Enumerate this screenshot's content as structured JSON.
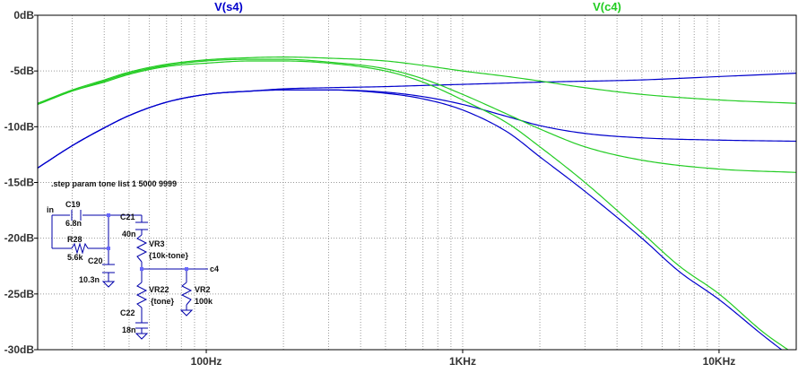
{
  "chart_data": {
    "type": "line",
    "x_scale": "log",
    "xlim_hz": [
      22,
      20000
    ],
    "ylim_db": [
      -30,
      0
    ],
    "grid": true,
    "ticks": {
      "y": [
        {
          "value": 0,
          "label": "0dB"
        },
        {
          "value": -5,
          "label": "-5dB"
        },
        {
          "value": -10,
          "label": "-10dB"
        },
        {
          "value": -15,
          "label": "-15dB"
        },
        {
          "value": -20,
          "label": "-20dB"
        },
        {
          "value": -25,
          "label": "-25dB"
        },
        {
          "value": -30,
          "label": "-30dB"
        }
      ],
      "x": [
        {
          "value": 100,
          "label": "100Hz"
        },
        {
          "value": 1000,
          "label": "1KHz"
        },
        {
          "value": 10000,
          "label": "10KHz"
        }
      ]
    },
    "legend": [
      {
        "label": "V(s4)",
        "color": "#0000cc"
      },
      {
        "label": "V(c4)",
        "color": "#22cc22"
      }
    ],
    "annotation": ".step param tone list 1 5000 9999",
    "series": [
      {
        "trace": "V(s4)",
        "step": 1,
        "color": "#0000cc",
        "points": [
          [
            22,
            -13.7
          ],
          [
            30,
            -11.7
          ],
          [
            40,
            -10.1
          ],
          [
            50,
            -9.0
          ],
          [
            70,
            -7.8
          ],
          [
            100,
            -7.1
          ],
          [
            150,
            -6.8
          ],
          [
            200,
            -6.7
          ],
          [
            300,
            -6.7
          ],
          [
            500,
            -7.0
          ],
          [
            700,
            -7.5
          ],
          [
            1000,
            -8.5
          ],
          [
            1500,
            -10.5
          ],
          [
            2000,
            -12.7
          ],
          [
            3000,
            -15.8
          ],
          [
            5000,
            -20.0
          ],
          [
            7000,
            -23.0
          ],
          [
            10000,
            -25.5
          ],
          [
            15000,
            -28.8
          ],
          [
            20000,
            -31.0
          ]
        ]
      },
      {
        "trace": "V(s4)",
        "step": 5000,
        "color": "#0000cc",
        "points": [
          [
            22,
            -13.7
          ],
          [
            30,
            -11.7
          ],
          [
            40,
            -10.1
          ],
          [
            50,
            -9.0
          ],
          [
            70,
            -7.8
          ],
          [
            100,
            -7.1
          ],
          [
            150,
            -6.8
          ],
          [
            200,
            -6.7
          ],
          [
            300,
            -6.7
          ],
          [
            500,
            -6.9
          ],
          [
            700,
            -7.3
          ],
          [
            1000,
            -8.0
          ],
          [
            1500,
            -9.1
          ],
          [
            2000,
            -9.9
          ],
          [
            3000,
            -10.6
          ],
          [
            5000,
            -11.0
          ],
          [
            10000,
            -11.2
          ],
          [
            20000,
            -11.3
          ]
        ]
      },
      {
        "trace": "V(s4)",
        "step": 9999,
        "color": "#0000cc",
        "points": [
          [
            22,
            -13.7
          ],
          [
            30,
            -11.7
          ],
          [
            40,
            -10.1
          ],
          [
            50,
            -9.0
          ],
          [
            70,
            -7.8
          ],
          [
            100,
            -7.1
          ],
          [
            150,
            -6.8
          ],
          [
            200,
            -6.6
          ],
          [
            300,
            -6.5
          ],
          [
            500,
            -6.4
          ],
          [
            700,
            -6.3
          ],
          [
            1000,
            -6.2
          ],
          [
            2000,
            -6.0
          ],
          [
            5000,
            -5.8
          ],
          [
            10000,
            -5.5
          ],
          [
            20000,
            -5.2
          ]
        ]
      },
      {
        "trace": "V(c4)",
        "step": 1,
        "color": "#22cc22",
        "points": [
          [
            22,
            -8.0
          ],
          [
            30,
            -6.8
          ],
          [
            40,
            -6.0
          ],
          [
            50,
            -5.3
          ],
          [
            70,
            -4.6
          ],
          [
            100,
            -4.3
          ],
          [
            150,
            -4.1
          ],
          [
            200,
            -4.1
          ],
          [
            300,
            -4.3
          ],
          [
            500,
            -5.0
          ],
          [
            700,
            -6.0
          ],
          [
            1000,
            -7.6
          ],
          [
            1500,
            -9.7
          ],
          [
            2000,
            -11.8
          ],
          [
            3000,
            -15.0
          ],
          [
            5000,
            -19.5
          ],
          [
            7000,
            -22.5
          ],
          [
            10000,
            -25.0
          ],
          [
            15000,
            -28.5
          ],
          [
            20000,
            -30.5
          ]
        ]
      },
      {
        "trace": "V(c4)",
        "step": 5000,
        "color": "#22cc22",
        "points": [
          [
            22,
            -8.0
          ],
          [
            30,
            -6.8
          ],
          [
            40,
            -5.9
          ],
          [
            50,
            -5.2
          ],
          [
            70,
            -4.5
          ],
          [
            100,
            -4.1
          ],
          [
            150,
            -3.95
          ],
          [
            200,
            -3.95
          ],
          [
            300,
            -4.2
          ],
          [
            500,
            -4.8
          ],
          [
            700,
            -5.7
          ],
          [
            1000,
            -7.1
          ],
          [
            1500,
            -8.9
          ],
          [
            2000,
            -10.2
          ],
          [
            3000,
            -11.8
          ],
          [
            5000,
            -13.0
          ],
          [
            10000,
            -13.8
          ],
          [
            20000,
            -14.1
          ]
        ]
      },
      {
        "trace": "V(c4)",
        "step": 9999,
        "color": "#22cc22",
        "points": [
          [
            22,
            -7.9
          ],
          [
            30,
            -6.7
          ],
          [
            40,
            -5.8
          ],
          [
            50,
            -5.1
          ],
          [
            70,
            -4.4
          ],
          [
            100,
            -4.0
          ],
          [
            150,
            -3.8
          ],
          [
            200,
            -3.75
          ],
          [
            300,
            -3.85
          ],
          [
            500,
            -4.1
          ],
          [
            700,
            -4.5
          ],
          [
            1000,
            -5.0
          ],
          [
            1500,
            -5.5
          ],
          [
            2000,
            -5.9
          ],
          [
            3000,
            -6.5
          ],
          [
            5000,
            -7.1
          ],
          [
            10000,
            -7.6
          ],
          [
            20000,
            -7.9
          ]
        ]
      }
    ]
  },
  "schematic": {
    "node_in": "in",
    "node_out": "c4",
    "c19_name": "C19",
    "c19_value": "6.8n",
    "r28_name": "R28",
    "r28_value": "5.6k",
    "c20_name": "C20",
    "c20_value": "10.3n",
    "c21_name": "C21",
    "c21_value": "40n",
    "vr3_name": "VR3",
    "vr3_value": "{10k-tone}",
    "vr22_name": "VR22",
    "vr22_value": "{tone}",
    "vr2_name": "VR2",
    "vr2_value": "100k",
    "c22_name": "C22",
    "c22_value": "18n"
  }
}
